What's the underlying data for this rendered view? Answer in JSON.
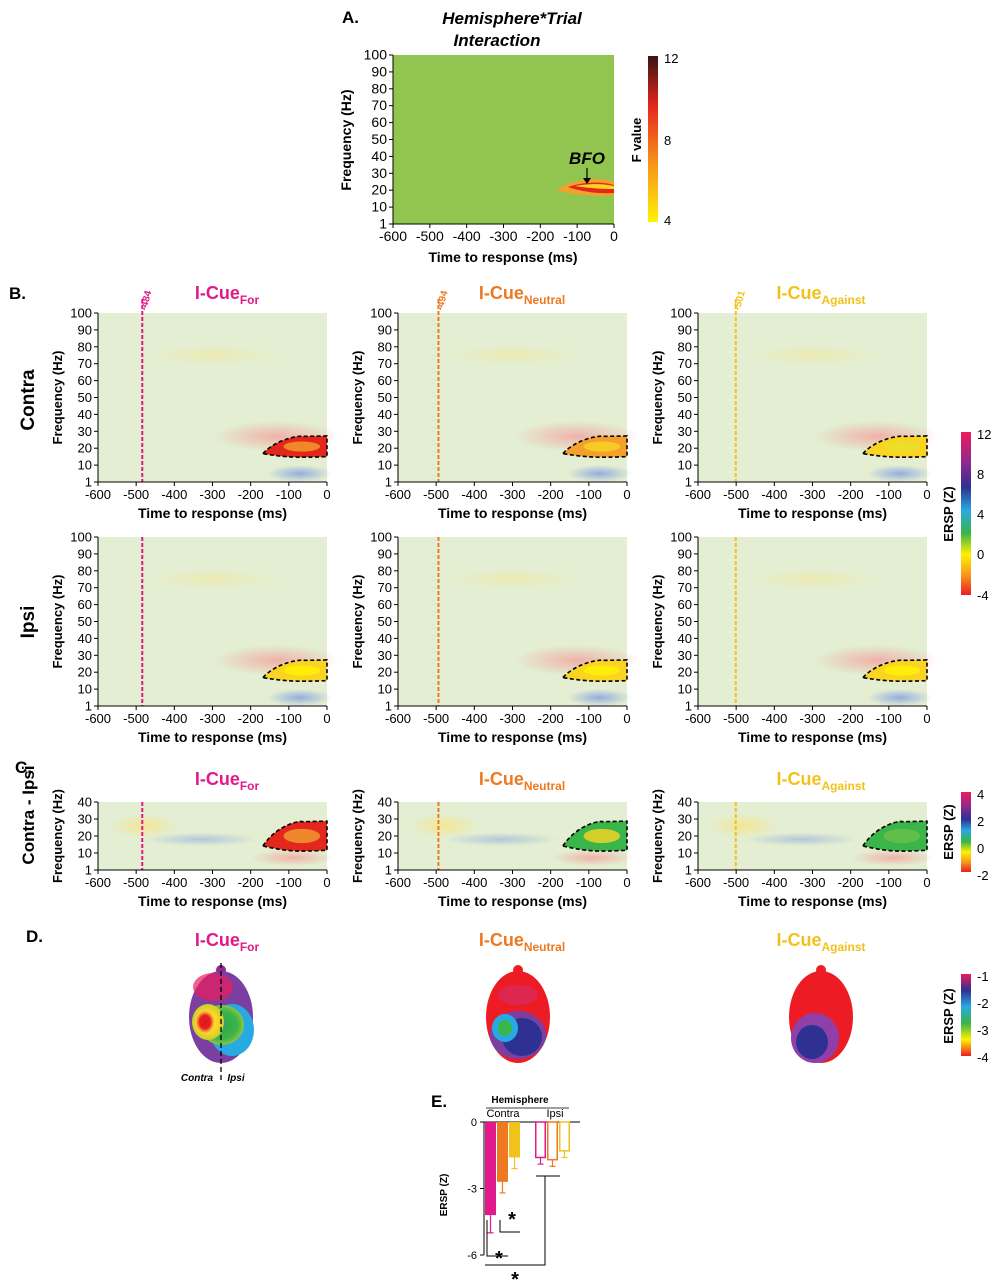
{
  "panel_letters": {
    "A": "A.",
    "B": "B.",
    "C": "C.",
    "D": "D.",
    "E": "E."
  },
  "panel_a": {
    "title_line1": "Hemisphere*Trial",
    "title_line2": "Interaction",
    "ylabel": "Frequency (Hz)",
    "xlabel": "Time to response (ms)",
    "annotation": "BFO",
    "colorbar_label": "F value",
    "colorbar_ticks": [
      "12",
      "8",
      "4"
    ],
    "colors": {
      "background": "#92c550",
      "hot": "#e3271c"
    }
  },
  "row_labels": {
    "contra": "Contra",
    "ipsi": "Ipsi",
    "diff": "Contra - Ipsi"
  },
  "conditions": [
    {
      "base": "I-Cue",
      "sub": "For",
      "color": "#e2198b",
      "line": "-484"
    },
    {
      "base": "I-Cue",
      "sub": "Neutral",
      "color": "#ed7a22",
      "line": "-494"
    },
    {
      "base": "I-Cue",
      "sub": "Against",
      "color": "#f2c21c",
      "line": "-501"
    }
  ],
  "axes": {
    "xticks": [
      "-600",
      "-500",
      "-400",
      "-300",
      "-200",
      "-100",
      "0"
    ],
    "yticks_full": [
      "100",
      "90",
      "80",
      "70",
      "60",
      "50",
      "40",
      "30",
      "20",
      "10",
      "1"
    ],
    "yticks_diff": [
      "40",
      "30",
      "20",
      "10",
      "1"
    ],
    "xlabel": "Time to response (ms)",
    "ylabel": "Frequency (Hz)"
  },
  "ersp_colorbar": {
    "label": "ERSP (Z)",
    "ticks": [
      "12",
      "8",
      "4",
      "0",
      "-4"
    ]
  },
  "diff_colorbar": {
    "label": "ERSP (Z)",
    "ticks": [
      "4",
      "2",
      "0",
      "-2"
    ]
  },
  "topo": {
    "contra_label": "Contra",
    "ipsi_label": "Ipsi",
    "colorbar_label": "ERSP (Z)",
    "colorbar_ticks": [
      "-1",
      "-2",
      "-3",
      "-4"
    ]
  },
  "panel_e": {
    "legend_title": "Hemisphere",
    "groups": [
      "Contra",
      "Ipsi"
    ],
    "ylabel": "ERSP (Z)",
    "yticks": [
      "0",
      "-3",
      "-6"
    ],
    "star": "*"
  },
  "chart_data": [
    {
      "type": "heatmap",
      "title": "Hemisphere*Trial Interaction",
      "xlabel": "Time to response (ms)",
      "ylabel": "Frequency (Hz)",
      "xlim": [
        -600,
        0
      ],
      "ylim": [
        1,
        100
      ],
      "colorbar": {
        "label": "F value",
        "range": [
          4,
          12
        ]
      },
      "annotation": {
        "text": "BFO",
        "time_ms": -75,
        "freq_hz": 22
      }
    },
    {
      "type": "bar",
      "title": "",
      "ylabel": "ERSP (Z)",
      "ylim": [
        -6,
        0
      ],
      "categories": [
        "Contra",
        "Ipsi"
      ],
      "series": [
        {
          "name": "I-Cue For",
          "values": [
            -4.2,
            -1.6
          ],
          "errors": [
            0.8,
            0.3
          ]
        },
        {
          "name": "I-Cue Neutral",
          "values": [
            -2.7,
            -1.7
          ],
          "errors": [
            0.5,
            0.3
          ]
        },
        {
          "name": "I-Cue Against",
          "values": [
            -1.6,
            -1.3
          ],
          "errors": [
            0.5,
            0.3
          ]
        }
      ]
    }
  ]
}
